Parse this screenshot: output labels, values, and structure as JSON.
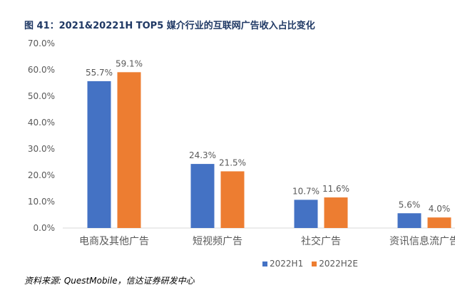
{
  "title": "图 41：2021&20221H TOP5 媒介行业的互联网广告收入占比变化",
  "source": "资料来源: QuestMobile，信达证券研发中心",
  "chart_data": {
    "type": "bar",
    "title": "图 41：2021&20221H TOP5 媒介行业的互联网广告收入占比变化",
    "categories": [
      "电商及其他广告",
      "短视频广告",
      "社交广告",
      "资讯信息流广告"
    ],
    "series": [
      {
        "name": "2022H1",
        "color": "#4472c4",
        "values": [
          55.7,
          24.3,
          10.7,
          5.6
        ],
        "labels": [
          "55.7%",
          "24.3%",
          "10.7%",
          "5.6%"
        ]
      },
      {
        "name": "2022H2E",
        "color": "#ed7d31",
        "values": [
          59.1,
          21.5,
          11.6,
          4.0
        ],
        "labels": [
          "59.1%",
          "21.5%",
          "11.6%",
          "4.0%"
        ]
      }
    ],
    "ylim": [
      0,
      70
    ],
    "yticks": [
      "0.0%",
      "10.0%",
      "20.0%",
      "30.0%",
      "40.0%",
      "50.0%",
      "60.0%",
      "70.0%"
    ],
    "grid": false,
    "legend": "bottom"
  }
}
